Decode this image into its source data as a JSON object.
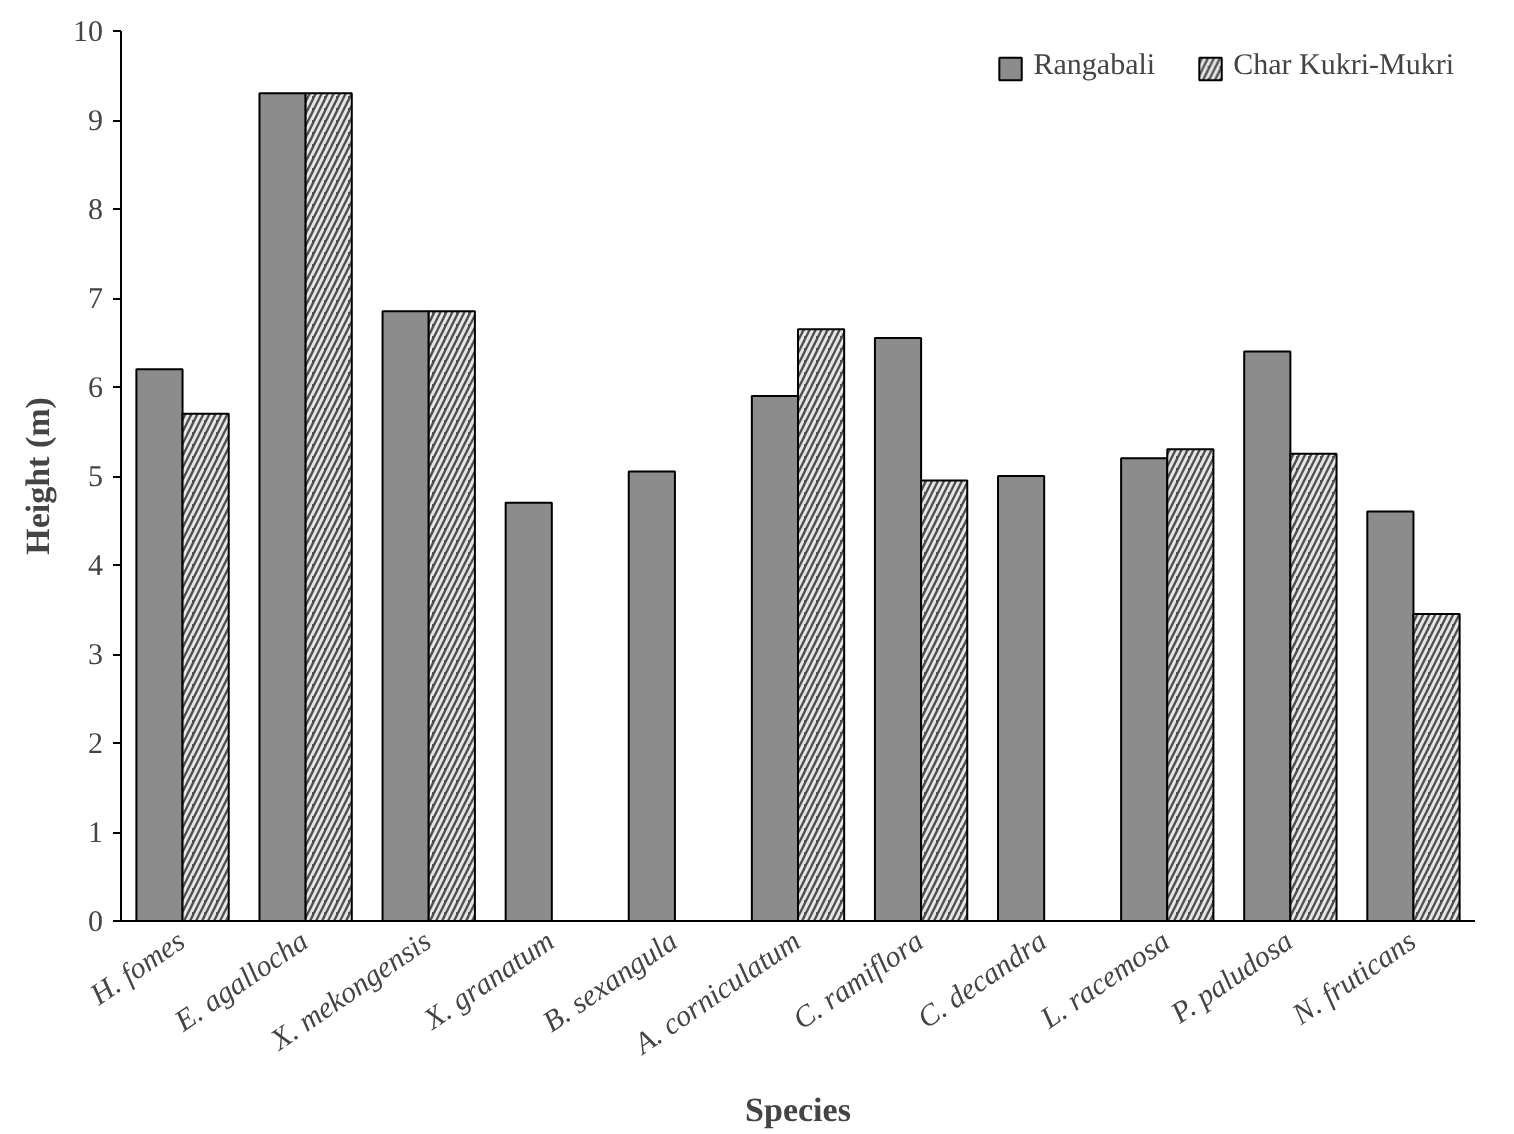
{
  "chart_data": {
    "type": "bar",
    "xlabel": "Species",
    "ylabel": "Height (m)",
    "categories": [
      "H. fomes",
      "E. agallocha",
      "X. mekongensis",
      "X. granatum",
      "B. sexangula",
      "A. corniculatum",
      "C. ramiflora",
      "C. decandra",
      "L. racemosa",
      "P. paludosa",
      "N. fruticans"
    ],
    "series": [
      {
        "name": "Rangabali",
        "color": "#8c8c8c",
        "values": [
          6.2,
          9.3,
          6.85,
          4.7,
          5.05,
          5.9,
          6.55,
          5.0,
          5.2,
          6.4,
          4.6
        ]
      },
      {
        "name": "Char Kukri-Mukri",
        "color": "#505050",
        "values": [
          5.7,
          9.3,
          6.85,
          null,
          null,
          6.65,
          4.95,
          null,
          5.3,
          5.25,
          3.45
        ]
      }
    ],
    "ylim": [
      0,
      10
    ],
    "yticks": [
      0,
      1,
      2,
      3,
      4,
      5,
      6,
      7,
      8,
      9,
      10
    ],
    "legend": "top right",
    "grid": false
  }
}
